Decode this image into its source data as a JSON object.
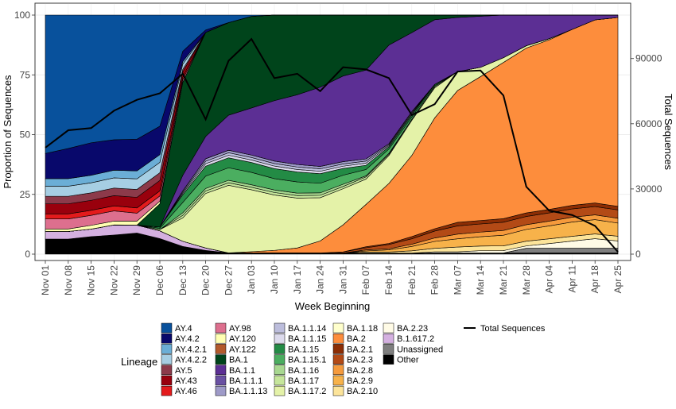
{
  "chart_data": {
    "type": "area",
    "stacked": true,
    "xlabel": "Week Beginning",
    "ylabel": "Proportion of Sequences",
    "y2label": "Total Sequences",
    "ylim": [
      0,
      100
    ],
    "y2lim": [
      0,
      110000
    ],
    "yticks": [
      0,
      25,
      50,
      75,
      100
    ],
    "y2ticks": [
      0,
      30000,
      60000,
      90000
    ],
    "grid": true,
    "x": [
      "Nov 01",
      "Nov 08",
      "Nov 15",
      "Nov 22",
      "Nov 29",
      "Dec 06",
      "Dec 13",
      "Dec 20",
      "Dec 27",
      "Jan 03",
      "Jan 10",
      "Jan 17",
      "Jan 24",
      "Jan 31",
      "Feb 07",
      "Feb 14",
      "Feb 21",
      "Feb 28",
      "Mar 07",
      "Mar 14",
      "Mar 21",
      "Mar 28",
      "Apr 04",
      "Apr 11",
      "Apr 18",
      "Apr 25"
    ],
    "legend_title": "Lineage",
    "series": [
      {
        "name": "Other",
        "color": "#000000",
        "values": [
          6,
          6,
          7,
          7.5,
          8,
          6,
          3,
          1.5,
          0.5,
          0.5,
          0.5,
          0.5,
          0.5,
          0.5,
          0.5,
          0.5,
          0.5,
          0.5,
          0.5,
          0.5,
          0.5,
          0.5,
          0.5,
          0.5,
          0.5,
          0.5
        ]
      },
      {
        "name": "Unassigned",
        "color": "#7f7f7f",
        "values": [
          0,
          0,
          0,
          0,
          0,
          0,
          0,
          0,
          0,
          0,
          0,
          0,
          0,
          0,
          0,
          0,
          0,
          0,
          0,
          0,
          0,
          2,
          2,
          2,
          2,
          2
        ]
      },
      {
        "name": "B.1.617.2",
        "color": "#d4b0e0",
        "values": [
          3,
          3,
          3,
          4,
          3,
          3,
          2,
          1,
          0,
          0,
          0,
          0,
          0,
          0,
          0,
          0,
          0,
          0,
          0,
          0,
          0,
          0,
          0,
          0,
          0,
          0
        ]
      },
      {
        "name": "BA.2.23",
        "color": "#fffbe6",
        "values": [
          0,
          0,
          0,
          0,
          0,
          0,
          0,
          0,
          0,
          0,
          0,
          0,
          0,
          0,
          0,
          0,
          0,
          0.5,
          0.5,
          1,
          1,
          1,
          2,
          3,
          4,
          3
        ]
      },
      {
        "name": "BA.2.10",
        "color": "#fce49a",
        "values": [
          0,
          0,
          0,
          0,
          0,
          0,
          0,
          0,
          0,
          0,
          0,
          0,
          0,
          0,
          0.5,
          0.5,
          1,
          1.5,
          2,
          2,
          2,
          2,
          2,
          2,
          2,
          2
        ]
      },
      {
        "name": "BA.2.9",
        "color": "#f7b24a",
        "values": [
          0,
          0,
          0,
          0,
          0,
          0,
          0,
          0,
          0,
          0,
          0,
          0,
          0,
          0,
          0.5,
          1,
          2,
          3,
          3.5,
          4,
          4.5,
          5,
          5.5,
          6,
          6,
          5.5
        ]
      },
      {
        "name": "BA.2.8",
        "color": "#f59a3c",
        "values": [
          0,
          0,
          0,
          0,
          0,
          0,
          0,
          0,
          0,
          0,
          0,
          0,
          0,
          0,
          0.5,
          0.5,
          1,
          1.5,
          2,
          2,
          2,
          2,
          2,
          2,
          2,
          2
        ]
      },
      {
        "name": "BA.2.3",
        "color": "#b34a16",
        "values": [
          0,
          0,
          0,
          0,
          0,
          0,
          0,
          0,
          0,
          0,
          0,
          0,
          0,
          0.5,
          1,
          2,
          2.5,
          3,
          3.5,
          3.5,
          3.5,
          3.5,
          3.5,
          3.5,
          3.5,
          3.5
        ]
      },
      {
        "name": "BA.2.1",
        "color": "#8c2d04",
        "values": [
          0,
          0,
          0,
          0,
          0,
          0,
          0,
          0,
          0,
          0,
          0,
          0,
          0,
          0,
          0.5,
          0.5,
          1,
          1,
          1.5,
          1.5,
          1.5,
          1.5,
          1.5,
          1.5,
          1.5,
          1.5
        ]
      },
      {
        "name": "BA.2",
        "color": "#fd8d3c",
        "values": [
          0,
          0,
          0,
          0,
          0,
          0,
          0,
          0,
          0,
          0.5,
          1,
          2,
          5,
          12,
          20,
          28,
          37,
          48,
          56,
          62,
          66,
          70,
          72,
          74,
          77,
          79
        ]
      },
      {
        "name": "BA.1.18",
        "color": "#ffffcc",
        "values": [
          0,
          0,
          0,
          0,
          0,
          0,
          0,
          0,
          0,
          0,
          0,
          0,
          0,
          0,
          0,
          0,
          0,
          0,
          0,
          0,
          0,
          0,
          0,
          0,
          0,
          0
        ]
      },
      {
        "name": "BA.1.17.2",
        "color": "#e4f2a8",
        "values": [
          0,
          0,
          0,
          0,
          0,
          0.5,
          9,
          22,
          27,
          25,
          22,
          20,
          18,
          16,
          12,
          13,
          16,
          13,
          8,
          4,
          2,
          1,
          0.5,
          0,
          0,
          0
        ]
      },
      {
        "name": "BA.1.17",
        "color": "#c6e69b",
        "values": [
          0,
          0,
          0,
          0,
          0,
          0,
          1,
          1,
          1,
          1,
          1,
          1,
          1,
          1,
          1,
          0.5,
          0.5,
          0.5,
          0,
          0,
          0,
          0,
          0,
          0,
          0,
          0
        ]
      },
      {
        "name": "BA.1.16",
        "color": "#a8d890",
        "values": [
          0,
          0,
          0,
          0,
          0,
          0,
          1,
          1,
          1,
          1,
          1,
          1,
          1,
          1,
          0.5,
          0.5,
          0,
          0,
          0,
          0,
          0,
          0,
          0,
          0,
          0,
          0
        ]
      },
      {
        "name": "BA.1.15.1",
        "color": "#4bae60",
        "values": [
          0,
          0,
          0,
          0,
          0,
          0.5,
          4,
          5,
          5,
          5,
          4.5,
          4.5,
          4,
          4,
          3,
          2,
          1,
          0.5,
          0,
          0,
          0,
          0,
          0,
          0,
          0,
          0
        ]
      },
      {
        "name": "BA.1.15",
        "color": "#238b45",
        "values": [
          0,
          0,
          0,
          0,
          0,
          0.5,
          3,
          4,
          4,
          4,
          4,
          4,
          4,
          3,
          2,
          1,
          1,
          0.5,
          0,
          0,
          0,
          0,
          0,
          0,
          0,
          0
        ]
      },
      {
        "name": "BA.1.1.15",
        "color": "#dcdaec",
        "values": [
          0,
          0,
          0,
          0,
          0,
          0,
          0.5,
          1,
          1,
          1,
          1,
          1,
          1,
          1,
          1,
          0.5,
          0.5,
          0,
          0,
          0,
          0,
          0,
          0,
          0,
          0,
          0
        ]
      },
      {
        "name": "BA.1.1.14",
        "color": "#bcbddc",
        "values": [
          0,
          0,
          0,
          0,
          0,
          0,
          0.5,
          1,
          1,
          1,
          1,
          1,
          1,
          1,
          1,
          0.5,
          0.5,
          0,
          0,
          0,
          0,
          0,
          0,
          0,
          0,
          0
        ]
      },
      {
        "name": "BA.1.1.13",
        "color": "#9e9ac8",
        "values": [
          0,
          0,
          0,
          0,
          0,
          0,
          0.5,
          1,
          1,
          1,
          1,
          1,
          1,
          1,
          1,
          0.5,
          0.5,
          0,
          0,
          0,
          0,
          0,
          0,
          0,
          0,
          0
        ]
      },
      {
        "name": "BA.1.1.1",
        "color": "#6a51a3",
        "values": [
          0,
          0,
          0,
          0,
          0,
          0,
          0,
          0,
          0,
          0,
          0,
          0,
          0,
          0,
          0,
          0,
          0,
          0,
          0,
          0,
          0,
          0,
          0,
          0,
          0,
          0
        ]
      },
      {
        "name": "BA.1.1",
        "color": "#5c2f94",
        "values": [
          0,
          0,
          0,
          0,
          0,
          0,
          6,
          9,
          14,
          19,
          24,
          28,
          33,
          38,
          42,
          46,
          36,
          28,
          23,
          22,
          18,
          13,
          10,
          6,
          2,
          1
        ]
      },
      {
        "name": "BA.1",
        "color": "#00441b",
        "values": [
          0,
          0,
          0,
          0,
          0,
          9,
          36,
          42,
          37,
          37,
          34,
          32,
          30,
          27,
          26,
          14,
          8,
          2,
          1,
          0.5,
          0,
          0,
          0,
          0,
          0,
          0
        ]
      },
      {
        "name": "AY.122",
        "color": "#b35a2b",
        "values": [
          0,
          0,
          0,
          0,
          0,
          0,
          0,
          0,
          0,
          0,
          0,
          0,
          0,
          0,
          0,
          0,
          0,
          0,
          0,
          0,
          0,
          0,
          0,
          0,
          0,
          0
        ]
      },
      {
        "name": "AY.120",
        "color": "#ffffb2",
        "values": [
          1,
          1,
          1.5,
          1.5,
          1.5,
          1,
          0,
          0,
          0,
          0,
          0,
          0,
          0,
          0,
          0,
          0,
          0,
          0,
          0,
          0,
          0,
          0,
          0,
          0,
          0,
          0
        ]
      },
      {
        "name": "AY.98",
        "color": "#dd6f8e",
        "values": [
          4,
          4,
          4,
          4,
          3,
          2,
          1,
          0,
          0,
          0,
          0,
          0,
          0,
          0,
          0,
          0,
          0,
          0,
          0,
          0,
          0,
          0,
          0,
          0,
          0,
          0
        ]
      },
      {
        "name": "AY.46",
        "color": "#e31a1c",
        "values": [
          2,
          2,
          2,
          2,
          2,
          2,
          1,
          0,
          0,
          0,
          0,
          0,
          0,
          0,
          0,
          0,
          0,
          0,
          0,
          0,
          0,
          0,
          0,
          0,
          0,
          0
        ]
      },
      {
        "name": "AY.43",
        "color": "#99000d",
        "values": [
          4,
          4,
          4,
          4,
          4,
          4,
          2,
          0,
          0,
          0,
          0,
          0,
          0,
          0,
          0,
          0,
          0,
          0,
          0,
          0,
          0,
          0,
          0,
          0,
          0,
          0
        ]
      },
      {
        "name": "AY.5",
        "color": "#8c3a4a",
        "values": [
          3,
          3,
          3,
          3,
          3,
          3,
          1,
          0,
          0,
          0,
          0,
          0,
          0,
          0,
          0,
          0,
          0,
          0,
          0,
          0,
          0,
          0,
          0,
          0,
          0,
          0
        ]
      },
      {
        "name": "AY.4.2.2",
        "color": "#a6cee3",
        "values": [
          4,
          4,
          4,
          4,
          4,
          4,
          2,
          0,
          0,
          0,
          0,
          0,
          0,
          0,
          0,
          0,
          0,
          0,
          0,
          0,
          0,
          0,
          0,
          0,
          0,
          0
        ]
      },
      {
        "name": "AY.4.2.1",
        "color": "#6baed6",
        "values": [
          3,
          3,
          3,
          3,
          3,
          3,
          1,
          0,
          0,
          0,
          0,
          0,
          0,
          0,
          0,
          0,
          0,
          0,
          0,
          0,
          0,
          0,
          0,
          0,
          0,
          0
        ]
      },
      {
        "name": "AY.4.2",
        "color": "#08086b",
        "values": [
          10,
          12,
          13,
          12,
          12,
          11,
          4,
          1,
          0,
          0,
          0,
          0,
          0,
          0,
          0,
          0,
          0,
          0,
          0,
          0,
          0,
          0,
          0,
          0,
          0,
          0
        ]
      },
      {
        "name": "AY.4",
        "color": "#08519c",
        "values": [
          55,
          53,
          51,
          49,
          47,
          43,
          14,
          6,
          3,
          0.5,
          0,
          0,
          0,
          0,
          0,
          0,
          0,
          0,
          0,
          0,
          0,
          0,
          0,
          0,
          0,
          0
        ]
      }
    ],
    "total_sequences": {
      "name": "Total Sequences",
      "color": "#000000",
      "values": [
        49000,
        57000,
        58000,
        66000,
        71000,
        74000,
        83000,
        62000,
        89000,
        99000,
        81000,
        83000,
        75000,
        86000,
        85000,
        81000,
        64000,
        69000,
        84000,
        84500,
        73000,
        31000,
        20000,
        18000,
        13000,
        1000
      ]
    }
  },
  "legend": {
    "title": "Lineage",
    "total_label": "Total Sequences",
    "columns": [
      [
        "AY.4",
        "AY.4.2",
        "AY.4.2.1",
        "AY.4.2.2",
        "AY.5",
        "AY.43",
        "AY.46"
      ],
      [
        "AY.98",
        "AY.120",
        "AY.122",
        "BA.1",
        "BA.1.1",
        "BA.1.1.1",
        "BA.1.1.13"
      ],
      [
        "BA.1.1.14",
        "BA.1.1.15",
        "BA.1.15",
        "BA.1.15.1",
        "BA.1.16",
        "BA.1.17",
        "BA.1.17.2"
      ],
      [
        "BA.1.18",
        "BA.2",
        "BA.2.1",
        "BA.2.3",
        "BA.2.8",
        "BA.2.9",
        "BA.2.10"
      ],
      [
        "BA.2.23",
        "B.1.617.2",
        "Unassigned",
        "Other"
      ]
    ]
  }
}
